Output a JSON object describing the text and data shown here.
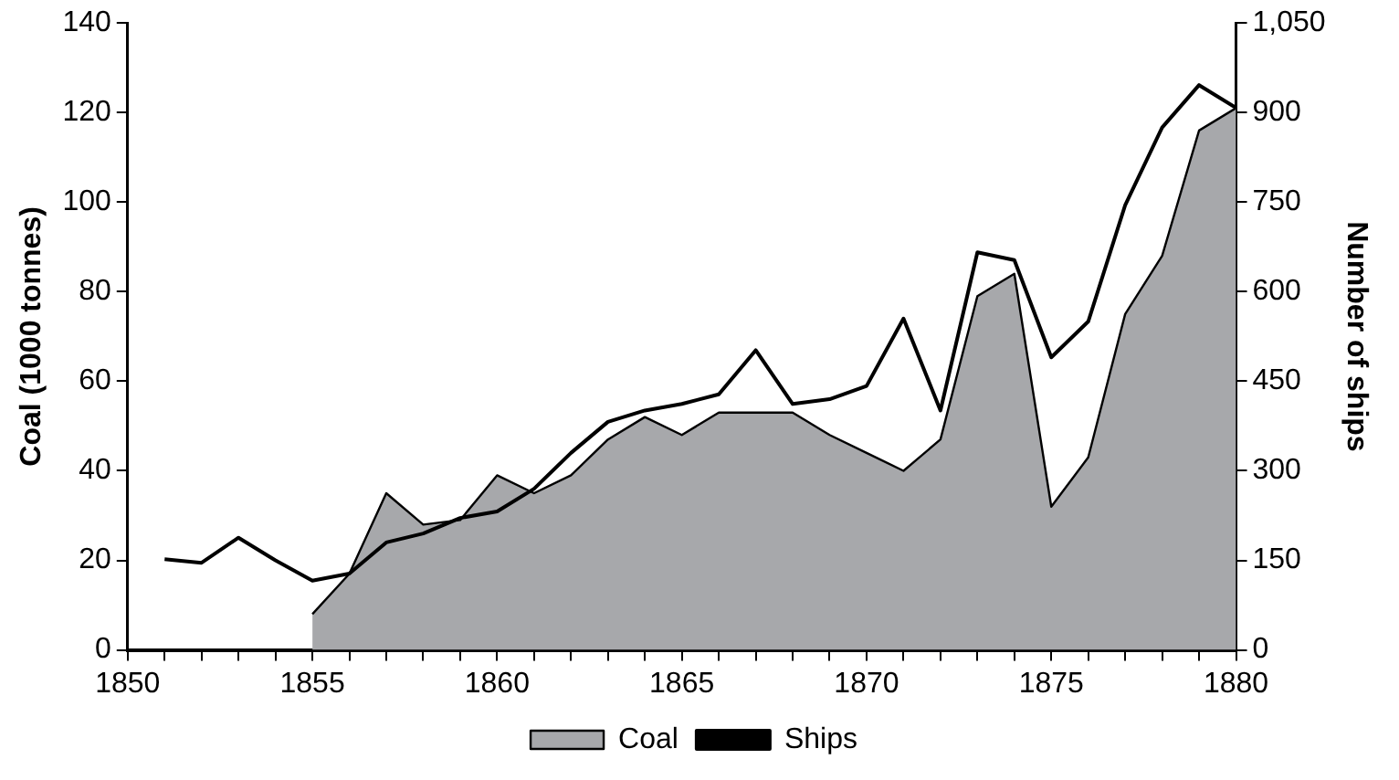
{
  "chart_data": {
    "type": "area",
    "ylabel": "Coal (1000 tonnes)",
    "y2label": "Number of ships",
    "xlim": [
      1850,
      1880
    ],
    "xticks": [
      1850,
      {
        "value": 1851,
        "label": null
      },
      {
        "value": 1852,
        "label": null
      },
      {
        "value": 1853,
        "label": null
      },
      {
        "value": 1854,
        "label": null
      },
      1855,
      {
        "value": 1856,
        "label": null
      },
      {
        "value": 1857,
        "label": null
      },
      {
        "value": 1858,
        "label": null
      },
      {
        "value": 1859,
        "label": null
      },
      1860,
      {
        "value": 1861,
        "label": null
      },
      {
        "value": 1862,
        "label": null
      },
      {
        "value": 1863,
        "label": null
      },
      {
        "value": 1864,
        "label": null
      },
      1865,
      {
        "value": 1866,
        "label": null
      },
      {
        "value": 1867,
        "label": null
      },
      {
        "value": 1868,
        "label": null
      },
      {
        "value": 1869,
        "label": null
      },
      1870,
      {
        "value": 1871,
        "label": null
      },
      {
        "value": 1872,
        "label": null
      },
      {
        "value": 1873,
        "label": null
      },
      {
        "value": 1874,
        "label": null
      },
      1875,
      {
        "value": 1876,
        "label": null
      },
      {
        "value": 1877,
        "label": null
      },
      {
        "value": 1878,
        "label": null
      },
      {
        "value": 1879,
        "label": null
      },
      1880
    ],
    "ylim": [
      0,
      140
    ],
    "yticks": [
      0,
      20,
      40,
      60,
      80,
      100,
      120,
      140
    ],
    "y2lim": [
      0,
      1050
    ],
    "y2ticks": [
      0,
      150,
      300,
      450,
      600,
      750,
      900,
      {
        "value": 1050,
        "label": "1,050"
      }
    ],
    "grid": false,
    "legend": "bottom",
    "series": [
      {
        "name": "Coal",
        "color": "#a7a8ab",
        "x": [
          1855,
          1856,
          1857,
          1858,
          1859,
          1860,
          1861,
          1862,
          1863,
          1864,
          1865,
          1866,
          1867,
          1868,
          1869,
          1870,
          1871,
          1872,
          1873,
          1874,
          1875,
          1876,
          1877,
          1878,
          1879,
          1880
        ],
        "values": [
          8,
          17,
          35,
          28,
          29,
          39,
          35,
          39,
          47,
          52,
          48,
          53,
          53,
          53,
          48,
          44,
          40,
          47,
          79,
          84,
          32,
          43,
          75,
          88,
          116,
          121
        ]
      },
      {
        "name": "Ships",
        "type": "line",
        "axis": "y2",
        "color": "#000000",
        "x": [
          1851,
          1852,
          1853,
          1854,
          1855,
          1856,
          1857,
          1858,
          1859,
          1860,
          1861,
          1862,
          1863,
          1864,
          1865,
          1866,
          1867,
          1868,
          1869,
          1870,
          1871,
          1872,
          1873,
          1874,
          1875,
          1876,
          1877,
          1878,
          1879,
          1880
        ],
        "values": [
          152,
          146,
          188,
          150,
          116,
          128,
          180,
          195,
          221,
          232,
          270,
          330,
          382,
          401,
          412,
          428,
          502,
          412,
          420,
          442,
          555,
          401,
          666,
          653,
          490,
          550,
          745,
          875,
          946,
          908
        ]
      }
    ]
  }
}
